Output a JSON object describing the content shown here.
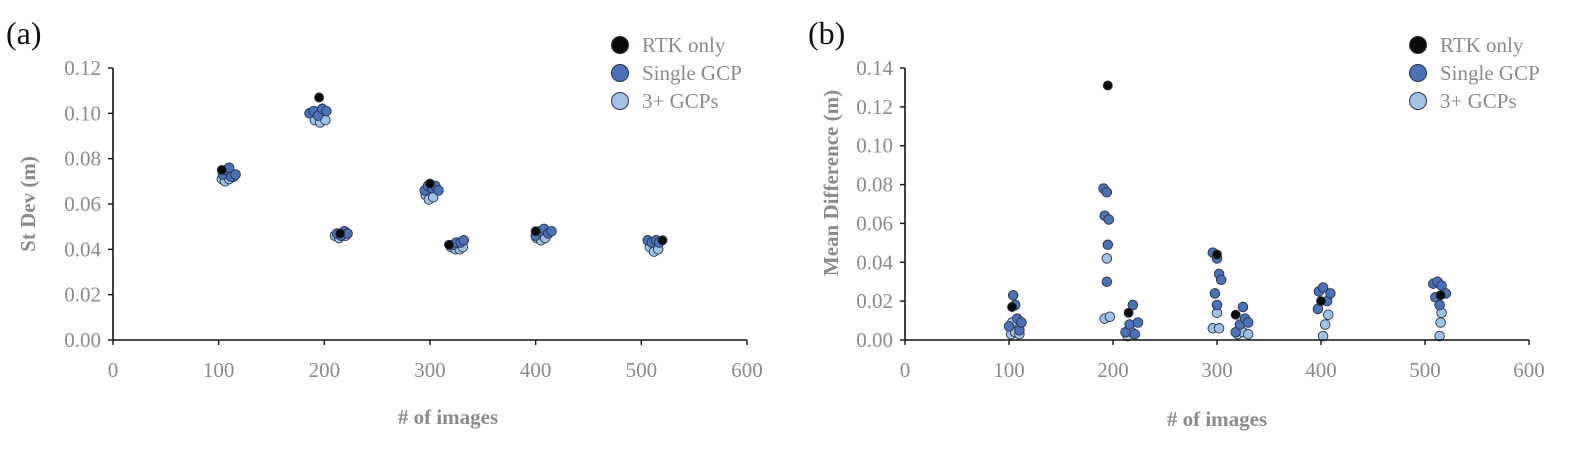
{
  "colors": {
    "rtk_only": "#0a0a0a",
    "single_gcp": "#4a72b8",
    "three_gcps": "#9fc3e6",
    "marker_stroke": "#26324a",
    "axis_text": "#8a8a8a"
  },
  "chart_data": [
    {
      "type": "scatter",
      "panel_label": "(a)",
      "xlabel": "# of images",
      "ylabel": "St Dev (m)",
      "xlim": [
        0,
        600
      ],
      "ylim": [
        0,
        0.12
      ],
      "x_ticks": [
        "0",
        "100",
        "200",
        "300",
        "400",
        "500",
        "600"
      ],
      "y_ticks": [
        "0.00",
        "0.02",
        "0.04",
        "0.06",
        "0.08",
        "0.10",
        "0.12"
      ],
      "grid": false,
      "legend_position": "top-right",
      "series": [
        {
          "name": "RTK only",
          "points": [
            {
              "x": 103,
              "y": 0.075
            },
            {
              "x": 195,
              "y": 0.107
            },
            {
              "x": 215,
              "y": 0.047
            },
            {
              "x": 300,
              "y": 0.069
            },
            {
              "x": 318,
              "y": 0.042
            },
            {
              "x": 400,
              "y": 0.048
            },
            {
              "x": 520,
              "y": 0.044
            }
          ]
        },
        {
          "name": "Single GCP",
          "points": [
            {
              "x": 104,
              "y": 0.073
            },
            {
              "x": 107,
              "y": 0.075
            },
            {
              "x": 110,
              "y": 0.076
            },
            {
              "x": 112,
              "y": 0.072
            },
            {
              "x": 116,
              "y": 0.073
            },
            {
              "x": 186,
              "y": 0.1
            },
            {
              "x": 190,
              "y": 0.101
            },
            {
              "x": 194,
              "y": 0.099
            },
            {
              "x": 198,
              "y": 0.102
            },
            {
              "x": 202,
              "y": 0.101
            },
            {
              "x": 212,
              "y": 0.047
            },
            {
              "x": 216,
              "y": 0.046
            },
            {
              "x": 219,
              "y": 0.048
            },
            {
              "x": 222,
              "y": 0.047
            },
            {
              "x": 295,
              "y": 0.066
            },
            {
              "x": 298,
              "y": 0.068
            },
            {
              "x": 302,
              "y": 0.067
            },
            {
              "x": 305,
              "y": 0.068
            },
            {
              "x": 308,
              "y": 0.066
            },
            {
              "x": 322,
              "y": 0.042
            },
            {
              "x": 325,
              "y": 0.043
            },
            {
              "x": 329,
              "y": 0.043
            },
            {
              "x": 332,
              "y": 0.044
            },
            {
              "x": 400,
              "y": 0.046
            },
            {
              "x": 404,
              "y": 0.048
            },
            {
              "x": 408,
              "y": 0.049
            },
            {
              "x": 412,
              "y": 0.047
            },
            {
              "x": 415,
              "y": 0.048
            },
            {
              "x": 506,
              "y": 0.044
            },
            {
              "x": 510,
              "y": 0.043
            },
            {
              "x": 514,
              "y": 0.044
            },
            {
              "x": 517,
              "y": 0.043
            }
          ]
        },
        {
          "name": "3+ GCPs",
          "points": [
            {
              "x": 103,
              "y": 0.071
            },
            {
              "x": 106,
              "y": 0.07
            },
            {
              "x": 110,
              "y": 0.071
            },
            {
              "x": 114,
              "y": 0.072
            },
            {
              "x": 191,
              "y": 0.097
            },
            {
              "x": 196,
              "y": 0.096
            },
            {
              "x": 201,
              "y": 0.097
            },
            {
              "x": 210,
              "y": 0.046
            },
            {
              "x": 214,
              "y": 0.045
            },
            {
              "x": 220,
              "y": 0.046
            },
            {
              "x": 296,
              "y": 0.064
            },
            {
              "x": 299,
              "y": 0.062
            },
            {
              "x": 303,
              "y": 0.063
            },
            {
              "x": 320,
              "y": 0.041
            },
            {
              "x": 324,
              "y": 0.04
            },
            {
              "x": 328,
              "y": 0.04
            },
            {
              "x": 331,
              "y": 0.041
            },
            {
              "x": 401,
              "y": 0.045
            },
            {
              "x": 405,
              "y": 0.044
            },
            {
              "x": 409,
              "y": 0.045
            },
            {
              "x": 508,
              "y": 0.041
            },
            {
              "x": 512,
              "y": 0.039
            },
            {
              "x": 516,
              "y": 0.04
            }
          ]
        }
      ]
    },
    {
      "type": "scatter",
      "panel_label": "(b)",
      "xlabel": "# of images",
      "ylabel": "Mean Difference (m)",
      "xlim": [
        0,
        600
      ],
      "ylim": [
        0,
        0.14
      ],
      "x_ticks": [
        "0",
        "100",
        "200",
        "300",
        "400",
        "500",
        "600"
      ],
      "y_ticks": [
        "0.00",
        "0.02",
        "0.04",
        "0.06",
        "0.08",
        "0.10",
        "0.12",
        "0.14"
      ],
      "grid": false,
      "legend_position": "top-right",
      "series": [
        {
          "name": "RTK only",
          "points": [
            {
              "x": 103,
              "y": 0.017
            },
            {
              "x": 195,
              "y": 0.131
            },
            {
              "x": 215,
              "y": 0.014
            },
            {
              "x": 300,
              "y": 0.044
            },
            {
              "x": 318,
              "y": 0.013
            },
            {
              "x": 400,
              "y": 0.02
            },
            {
              "x": 515,
              "y": 0.023
            }
          ]
        },
        {
          "name": "Single GCP",
          "points": [
            {
              "x": 100,
              "y": 0.007
            },
            {
              "x": 104,
              "y": 0.023
            },
            {
              "x": 106,
              "y": 0.018
            },
            {
              "x": 108,
              "y": 0.011
            },
            {
              "x": 110,
              "y": 0.005
            },
            {
              "x": 112,
              "y": 0.009
            },
            {
              "x": 191,
              "y": 0.078
            },
            {
              "x": 194,
              "y": 0.076
            },
            {
              "x": 192,
              "y": 0.064
            },
            {
              "x": 196,
              "y": 0.062
            },
            {
              "x": 195,
              "y": 0.049
            },
            {
              "x": 194,
              "y": 0.03
            },
            {
              "x": 212,
              "y": 0.004
            },
            {
              "x": 216,
              "y": 0.008
            },
            {
              "x": 219,
              "y": 0.018
            },
            {
              "x": 221,
              "y": 0.003
            },
            {
              "x": 224,
              "y": 0.009
            },
            {
              "x": 296,
              "y": 0.045
            },
            {
              "x": 300,
              "y": 0.042
            },
            {
              "x": 302,
              "y": 0.034
            },
            {
              "x": 304,
              "y": 0.031
            },
            {
              "x": 298,
              "y": 0.024
            },
            {
              "x": 300,
              "y": 0.018
            },
            {
              "x": 318,
              "y": 0.004
            },
            {
              "x": 322,
              "y": 0.008
            },
            {
              "x": 325,
              "y": 0.017
            },
            {
              "x": 327,
              "y": 0.011
            },
            {
              "x": 330,
              "y": 0.009
            },
            {
              "x": 398,
              "y": 0.025
            },
            {
              "x": 402,
              "y": 0.027
            },
            {
              "x": 406,
              "y": 0.02
            },
            {
              "x": 409,
              "y": 0.024
            },
            {
              "x": 397,
              "y": 0.016
            },
            {
              "x": 508,
              "y": 0.029
            },
            {
              "x": 512,
              "y": 0.03
            },
            {
              "x": 516,
              "y": 0.028
            },
            {
              "x": 520,
              "y": 0.024
            },
            {
              "x": 510,
              "y": 0.022
            },
            {
              "x": 514,
              "y": 0.018
            }
          ]
        },
        {
          "name": "3+ GCPs",
          "points": [
            {
              "x": 102,
              "y": 0.003
            },
            {
              "x": 106,
              "y": 0.004
            },
            {
              "x": 110,
              "y": 0.003
            },
            {
              "x": 103,
              "y": 0.009
            },
            {
              "x": 192,
              "y": 0.011
            },
            {
              "x": 197,
              "y": 0.012
            },
            {
              "x": 194,
              "y": 0.042
            },
            {
              "x": 214,
              "y": 0.002
            },
            {
              "x": 218,
              "y": 0.004
            },
            {
              "x": 296,
              "y": 0.006
            },
            {
              "x": 302,
              "y": 0.006
            },
            {
              "x": 300,
              "y": 0.014
            },
            {
              "x": 320,
              "y": 0.003
            },
            {
              "x": 325,
              "y": 0.004
            },
            {
              "x": 330,
              "y": 0.003
            },
            {
              "x": 402,
              "y": 0.002
            },
            {
              "x": 404,
              "y": 0.008
            },
            {
              "x": 407,
              "y": 0.013
            },
            {
              "x": 514,
              "y": 0.002
            },
            {
              "x": 515,
              "y": 0.009
            },
            {
              "x": 516,
              "y": 0.014
            }
          ]
        }
      ]
    }
  ]
}
